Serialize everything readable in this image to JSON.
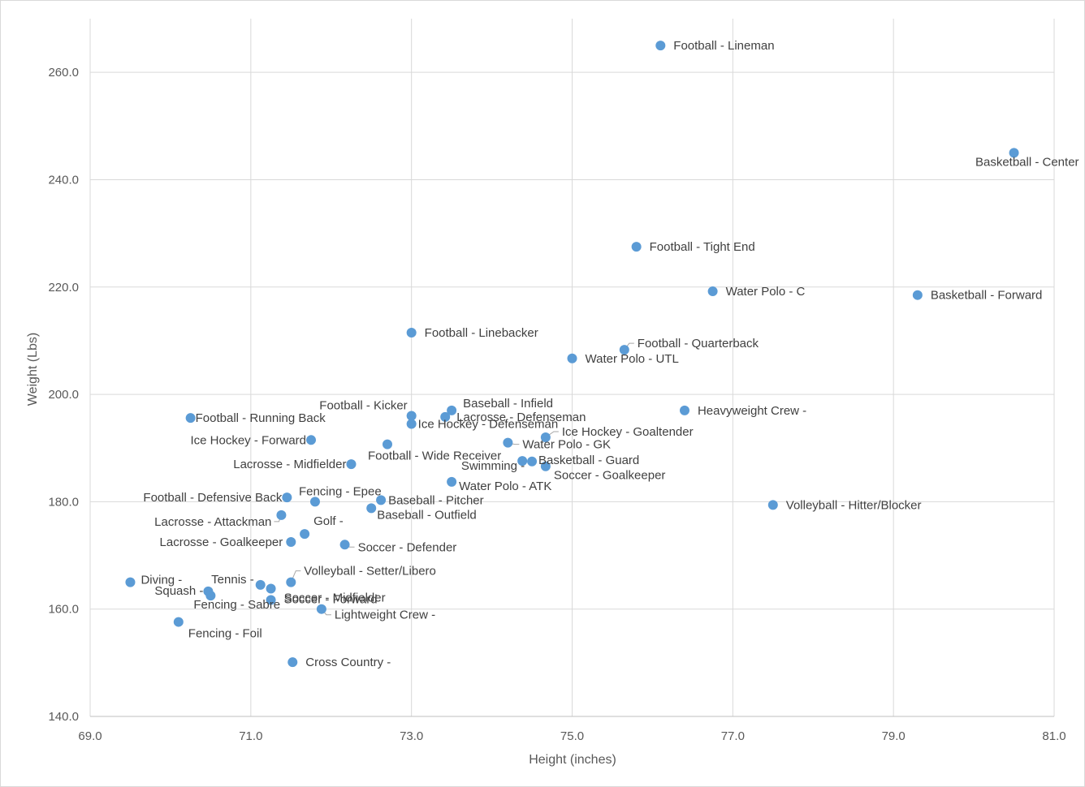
{
  "chart_data": {
    "type": "scatter",
    "title": "",
    "xlabel": "Height (inches)",
    "ylabel": "Weight (Lbs)",
    "xlim": [
      69.0,
      81.0
    ],
    "ylim": [
      140.0,
      270.0
    ],
    "x_ticks": [
      "69.0",
      "71.0",
      "73.0",
      "75.0",
      "77.0",
      "79.0",
      "81.0"
    ],
    "y_ticks": [
      "140.0",
      "160.0",
      "180.0",
      "200.0",
      "220.0",
      "240.0",
      "260.0"
    ],
    "grid": true,
    "point_color": "#5b9bd5",
    "points": [
      {
        "label": "Football - Lineman",
        "x": 76.1,
        "y": 265.0
      },
      {
        "label": "Basketball - Center",
        "x": 80.5,
        "y": 245.0
      },
      {
        "label": "Football - Tight End",
        "x": 75.8,
        "y": 227.5
      },
      {
        "label": "Water Polo - C",
        "x": 76.75,
        "y": 219.2
      },
      {
        "label": "Basketball - Forward",
        "x": 79.3,
        "y": 218.5
      },
      {
        "label": "Football - Linebacker",
        "x": 73.0,
        "y": 211.5
      },
      {
        "label": "Football - Quarterback",
        "x": 75.65,
        "y": 208.3
      },
      {
        "label": "Water Polo - UTL",
        "x": 75.0,
        "y": 206.7
      },
      {
        "label": "Baseball - Infield",
        "x": 73.5,
        "y": 197.0
      },
      {
        "label": "Heavyweight Crew -",
        "x": 76.4,
        "y": 197.0
      },
      {
        "label": "Lacrosse - Defenseman",
        "x": 73.42,
        "y": 195.8
      },
      {
        "label": "Football - Kicker",
        "x": 73.0,
        "y": 196.0
      },
      {
        "label": "Football - Running Back",
        "x": 70.25,
        "y": 195.6
      },
      {
        "label": "Ice Hockey - Defenseman",
        "x": 73.0,
        "y": 194.5
      },
      {
        "label": "Ice Hockey - Goaltender",
        "x": 74.67,
        "y": 192.0
      },
      {
        "label": "Ice Hockey - Forward",
        "x": 71.75,
        "y": 191.5
      },
      {
        "label": "Water Polo - GK",
        "x": 74.2,
        "y": 191.0
      },
      {
        "label": "Football - Wide Receiver",
        "x": 72.7,
        "y": 190.7
      },
      {
        "label": "Basketball - Guard",
        "x": 74.5,
        "y": 187.5
      },
      {
        "label": "Swimming -",
        "x": 74.38,
        "y": 187.6
      },
      {
        "label": "Lacrosse - Midfielder",
        "x": 72.25,
        "y": 187.0
      },
      {
        "label": "Soccer - Goalkeeper",
        "x": 74.67,
        "y": 186.6
      },
      {
        "label": "Water Polo - ATK",
        "x": 73.5,
        "y": 183.7
      },
      {
        "label": "Football - Defensive Back",
        "x": 71.45,
        "y": 180.8
      },
      {
        "label": "Fencing - Epee",
        "x": 71.8,
        "y": 180.0
      },
      {
        "label": "Baseball - Pitcher",
        "x": 72.62,
        "y": 180.3
      },
      {
        "label": "Volleyball - Hitter/Blocker",
        "x": 77.5,
        "y": 179.4
      },
      {
        "label": "Baseball - Outfield",
        "x": 72.5,
        "y": 178.8
      },
      {
        "label": "Lacrosse - Attackman",
        "x": 71.38,
        "y": 177.5
      },
      {
        "label": "Golf -",
        "x": 71.67,
        "y": 174.0
      },
      {
        "label": "Lacrosse - Goalkeeper",
        "x": 71.5,
        "y": 172.5
      },
      {
        "label": "Soccer - Defender",
        "x": 72.17,
        "y": 172.0
      },
      {
        "label": "Volleyball - Setter/Libero",
        "x": 71.5,
        "y": 165.0
      },
      {
        "label": "Diving -",
        "x": 69.5,
        "y": 165.0
      },
      {
        "label": "Tennis -",
        "x": 71.12,
        "y": 164.5
      },
      {
        "label": "Soccer - Midfielder",
        "x": 71.25,
        "y": 163.8
      },
      {
        "label": "Squash -",
        "x": 70.47,
        "y": 163.3
      },
      {
        "label": "Fencing - Sabre",
        "x": 70.5,
        "y": 162.5
      },
      {
        "label": "Soccer - Forward",
        "x": 71.25,
        "y": 161.7
      },
      {
        "label": "Lightweight Crew -",
        "x": 71.88,
        "y": 160.0
      },
      {
        "label": "Fencing - Foil",
        "x": 70.1,
        "y": 157.6
      },
      {
        "label": "Cross Country -",
        "x": 71.52,
        "y": 150.1
      }
    ]
  }
}
